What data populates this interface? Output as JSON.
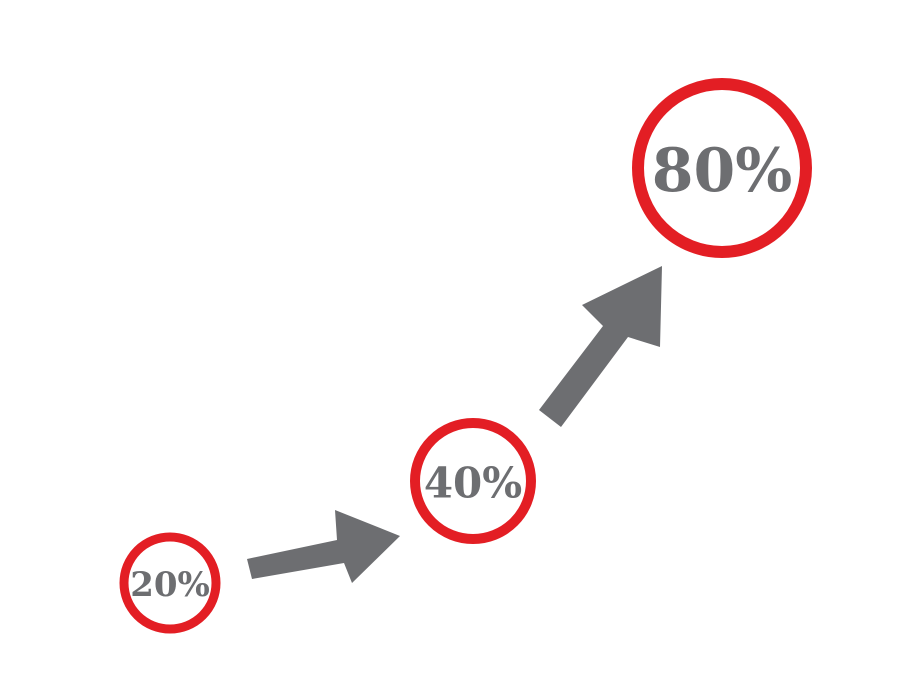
{
  "colors": {
    "background": "#ffffff",
    "circle_stroke": "#e31e24",
    "arrow_fill": "#6d6e71",
    "label_text": "#6d6e71"
  },
  "stages": [
    {
      "label": "20%"
    },
    {
      "label": "40%"
    },
    {
      "label": "80%"
    }
  ]
}
